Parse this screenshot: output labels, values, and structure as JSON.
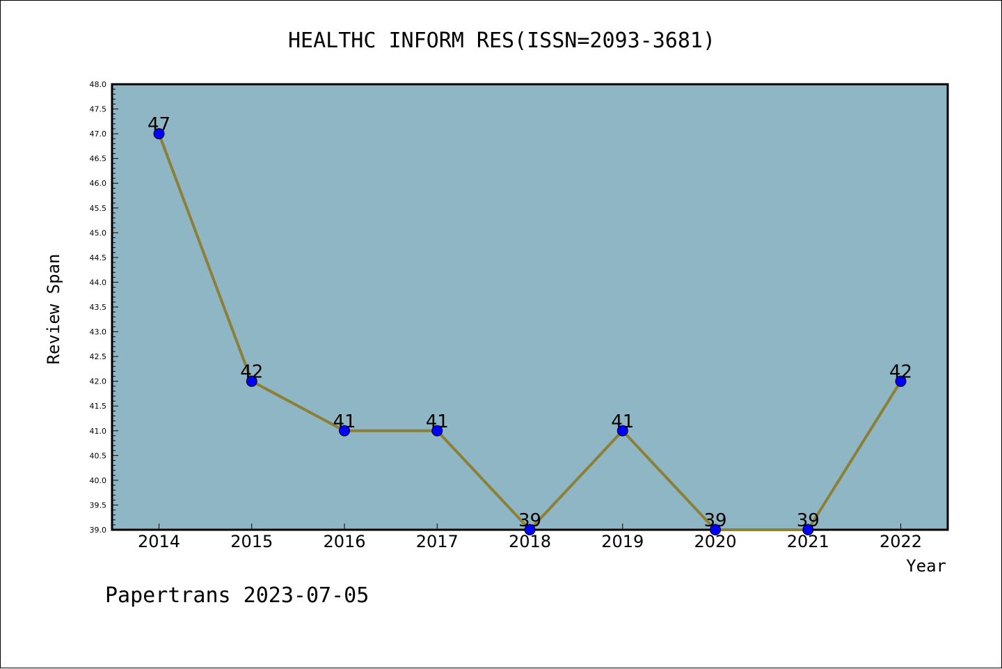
{
  "chart_data": {
    "type": "line",
    "title": "HEALTHC INFORM RES(ISSN=2093-3681)",
    "xlabel": "Year",
    "ylabel": "Review Span",
    "categories": [
      "2014",
      "2015",
      "2016",
      "2017",
      "2018",
      "2019",
      "2020",
      "2021",
      "2022"
    ],
    "series": [
      {
        "values": [
          47,
          42,
          41,
          41,
          39,
          41,
          39,
          39,
          42
        ]
      }
    ],
    "data_labels": [
      "47",
      "42",
      "41",
      "41",
      "39",
      "41",
      "39",
      "39",
      "42"
    ],
    "ylim": [
      39.0,
      48.0
    ],
    "y_ticks": [
      "39.0",
      "39.5",
      "40.0",
      "40.5",
      "41.0",
      "41.5",
      "42.0",
      "42.5",
      "43.0",
      "43.5",
      "44.0",
      "44.5",
      "45.0",
      "45.5",
      "46.0",
      "46.5",
      "47.0",
      "47.5",
      "48.0"
    ],
    "grid": false,
    "colors": {
      "plot_background": "#8fb6c4",
      "line": "#8c7f36",
      "marker": "#0000ff"
    }
  },
  "footer": {
    "text": "Papertrans 2023-07-05"
  }
}
